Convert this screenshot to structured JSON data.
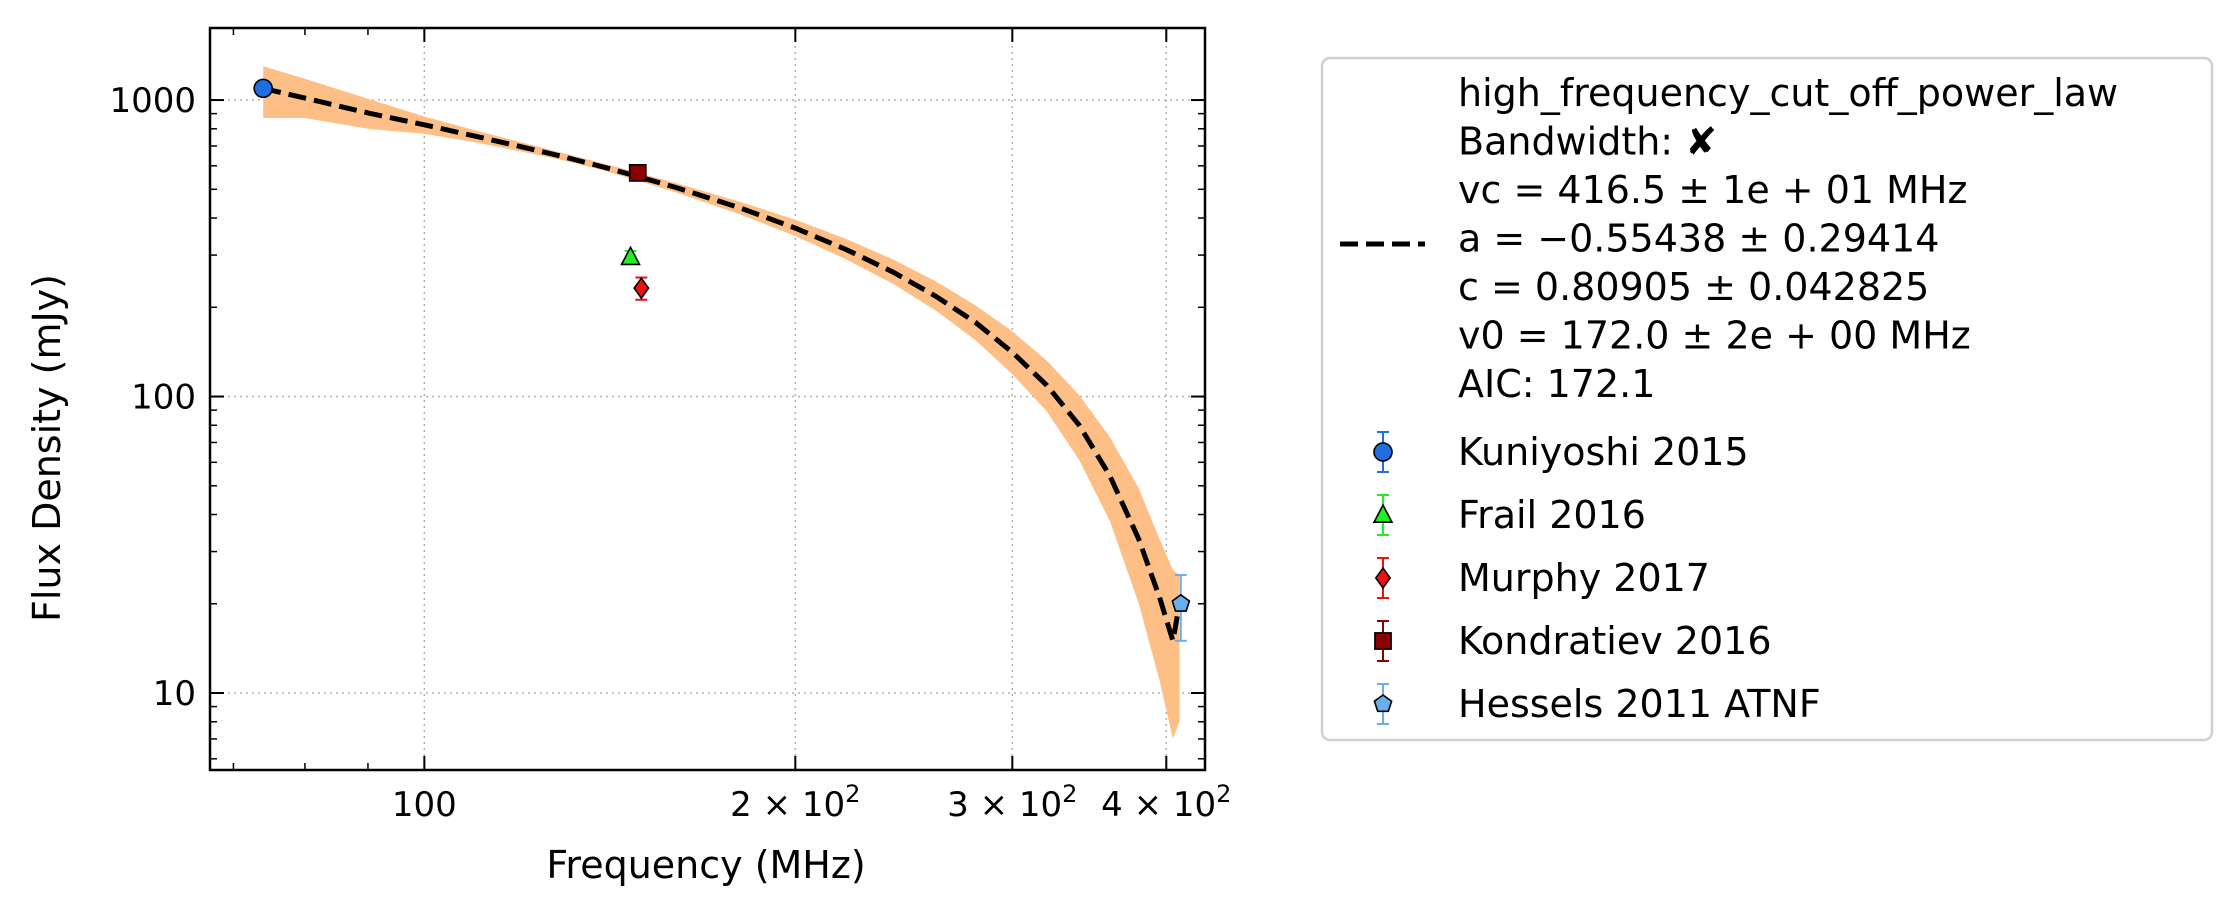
{
  "chart_data": {
    "type": "scatter",
    "xlabel": "Frequency (MHz)",
    "ylabel": "Flux Density (mJy)",
    "x_scale": "log",
    "y_scale": "log",
    "xlim": [
      67,
      430
    ],
    "ylim": [
      5.5,
      1750
    ],
    "grid": true,
    "legend_position": "right, outside plot",
    "x_ticks": [
      {
        "value": 100,
        "label": "100"
      },
      {
        "value": 200,
        "base": "2 × 10",
        "exp": "2"
      },
      {
        "value": 300,
        "base": "3 × 10",
        "exp": "2"
      },
      {
        "value": 400,
        "base": "4 × 10",
        "exp": "2"
      }
    ],
    "y_ticks": [
      {
        "value": 10,
        "label": "10"
      },
      {
        "value": 100,
        "label": "100"
      },
      {
        "value": 1000,
        "label": "1000"
      }
    ],
    "fit": {
      "name": "high_frequency_cut_off_power_law",
      "bandwidth_label": "Bandwidth:",
      "bandwidth_mark": "✘",
      "params": [
        "vc = 416.5 ± 1e + 01 MHz",
        "a = −0.55438 ± 0.29414",
        "c = 0.80905 ± 0.042825",
        "v0 = 172.0 ± 2e + 00 MHz"
      ],
      "aic": "AIC: 172.1",
      "line_color": "#000000",
      "band_color": "#fdbf85",
      "vc": 416.5,
      "a": -0.55438,
      "c": 0.80905,
      "v0": 172.0,
      "x": [
        74,
        80,
        90,
        100,
        110,
        120,
        130,
        140,
        150,
        160,
        180,
        200,
        220,
        240,
        260,
        280,
        300,
        320,
        340,
        360,
        380,
        395,
        405,
        410
      ],
      "y": [
        1095,
        1015,
        905,
        825,
        755,
        695,
        642,
        593,
        548,
        507,
        434,
        370,
        313,
        263,
        218,
        178,
        141,
        109,
        80,
        54,
        33,
        21,
        15,
        20
      ],
      "y_upper": [
        1300,
        1180,
        1010,
        880,
        790,
        720,
        660,
        610,
        565,
        525,
        455,
        395,
        340,
        290,
        245,
        203,
        166,
        132,
        101,
        73,
        49,
        33,
        26,
        25
      ],
      "y_lower": [
        870,
        870,
        800,
        770,
        720,
        670,
        625,
        578,
        530,
        488,
        413,
        348,
        290,
        240,
        195,
        155,
        119,
        89,
        61,
        38,
        20,
        11,
        7,
        8
      ]
    },
    "series": [
      {
        "name": "Kuniyoshi 2015",
        "marker": "circle",
        "color": "#1f6fe0",
        "points": [
          {
            "x": 74,
            "y": 1095,
            "yerr": 60
          }
        ]
      },
      {
        "name": "Frail 2016",
        "marker": "triangle",
        "color": "#22ee22",
        "points": [
          {
            "x": 147,
            "y": 295,
            "yerr": 15
          }
        ]
      },
      {
        "name": "Murphy 2017",
        "marker": "diamond",
        "color": "#ee1111",
        "points": [
          {
            "x": 150,
            "y": 232,
            "yerr": 20
          }
        ]
      },
      {
        "name": "Kondratiev 2016",
        "marker": "square",
        "color": "#8b0000",
        "points": [
          {
            "x": 149,
            "y": 568,
            "yerr": 30
          }
        ]
      },
      {
        "name": "Hessels 2011 ATNF",
        "marker": "pentagon",
        "color": "#6aaef0",
        "points": [
          {
            "x": 411,
            "y": 20,
            "yerr": 5
          }
        ]
      }
    ]
  }
}
